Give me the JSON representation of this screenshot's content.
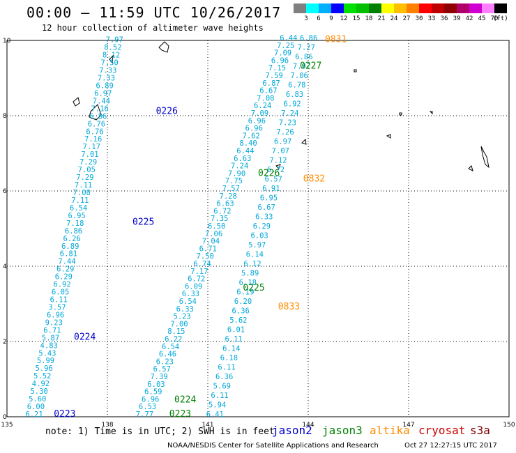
{
  "header": {
    "title": "00:00 – 11:59 UTC 10/26/2017",
    "subtitle": "12 hour collection of altimeter wave heights"
  },
  "colorbar": {
    "unit": "(ft)",
    "stops": [
      {
        "label": "3",
        "color": "#808080"
      },
      {
        "label": "6",
        "color": "#00ffff"
      },
      {
        "label": "9",
        "color": "#00b0ff"
      },
      {
        "label": "12",
        "color": "#0000ff"
      },
      {
        "label": "15",
        "color": "#00e000"
      },
      {
        "label": "18",
        "color": "#00c000"
      },
      {
        "label": "21",
        "color": "#008000"
      },
      {
        "label": "24",
        "color": "#ffff00"
      },
      {
        "label": "27",
        "color": "#ffc000"
      },
      {
        "label": "30",
        "color": "#ff8000"
      },
      {
        "label": "33",
        "color": "#ff0000"
      },
      {
        "label": "36",
        "color": "#c00000"
      },
      {
        "label": "39",
        "color": "#900000"
      },
      {
        "label": "42",
        "color": "#b0006a"
      },
      {
        "label": "45",
        "color": "#d000d0"
      },
      {
        "label": "70",
        "color": "#ff80ff"
      },
      {
        "label": "",
        "color": "#000000"
      }
    ]
  },
  "footer": {
    "note": "note: 1) Time is in UTC; 2) SWH is in feet",
    "credit": "NOAA/NESDIS Center for Satellite Applications and Research",
    "timestamp": "Oct 27 12:27:15 UTC 2017",
    "legend": [
      {
        "label": "jason2",
        "color": "#0000cc"
      },
      {
        "label": "jason3",
        "color": "#008000"
      },
      {
        "label": "altika",
        "color": "#ff8c00"
      },
      {
        "label": "cryosat",
        "color": "#cc0000"
      },
      {
        "label": "s3a",
        "color": "#800000"
      }
    ]
  },
  "chart_data": {
    "type": "scatter",
    "xlim": [
      135,
      150
    ],
    "ylim": [
      0,
      10
    ],
    "x_ticks": [
      "135",
      "138",
      "141",
      "144",
      "147",
      "150"
    ],
    "y_ticks": [
      "0",
      "2",
      "4",
      "6",
      "8",
      "10"
    ],
    "grid": true,
    "value_color": "#00a8d8",
    "tracks": [
      {
        "name": "jason2-west",
        "color": "#00a8d8",
        "start": [
          135.55,
          0.0
        ],
        "end": [
          137.95,
          9.95
        ],
        "values": [
          "6.21",
          "6.00",
          "5.60",
          "5.30",
          "4.92",
          "5.52",
          "5.96",
          "5.99",
          "5.43",
          "4.83",
          "5.87",
          "6.71",
          "9.23",
          "6.96",
          "3.57",
          "6.11",
          "6.05",
          "6.92",
          "6.29",
          "6.29",
          "7.44",
          "6.81",
          "6.89",
          "6.26",
          "6.86",
          "7.18",
          "6.95",
          "6.54",
          "7.11",
          "7.08",
          "7.11",
          "7.29",
          "7.05",
          "7.29",
          "7.01",
          "7.17",
          "7.16",
          "6.76",
          "6.76",
          "6.86",
          "7.16",
          "7.44",
          "6.97",
          "6.89",
          "7.33",
          "7.33",
          "7.50",
          "8.12",
          "8.52",
          "7.97"
        ]
      },
      {
        "name": "jason3-west",
        "color": "#00a8d8",
        "start": [
          138.85,
          0.0
        ],
        "end": [
          143.15,
          10.0
        ],
        "values": [
          "7.77",
          "6.53",
          "6.96",
          "6.59",
          "6.03",
          "7.39",
          "6.57",
          "6.23",
          "6.46",
          "6.54",
          "6.22",
          "8.15",
          "7.00",
          "5.23",
          "6.33",
          "6.54",
          "6.33",
          "6.09",
          "6.72",
          "7.17",
          "6.74",
          "7.50",
          "6.71",
          "7.04",
          "7.06",
          "6.50",
          "7.35",
          "6.72",
          "6.63",
          "7.28",
          "7.57",
          "7.75",
          "7.90",
          "7.24",
          "6.63",
          "6.44",
          "8.40",
          "7.62",
          "6.96",
          "6.96",
          "7.09",
          "6.24",
          "7.08",
          "6.67",
          "6.87",
          "7.59",
          "7.15",
          "6.96",
          "7.09",
          "7.25",
          "6.44"
        ]
      },
      {
        "name": "jason3-east",
        "color": "#00a8d8",
        "start": [
          140.95,
          0.0
        ],
        "end": [
          143.75,
          10.0
        ],
        "values": [
          "6.41",
          "5.94",
          "6.11",
          "5.69",
          "6.36",
          "6.11",
          "6.18",
          "6.14",
          "6.11",
          "6.01",
          "5.62",
          "6.36",
          "6.20",
          "6.19",
          "6.18",
          "5.89",
          "6.12",
          "6.14",
          "5.97",
          "6.03",
          "6.29",
          "6.33",
          "6.67",
          "6.95",
          "6.91",
          "6.57",
          "6.72",
          "7.12",
          "7.07",
          "6.97",
          "7.26",
          "7.23",
          "7.24",
          "6.92",
          "6.83",
          "6.78",
          "7.06",
          "7.0?",
          "6.86",
          "7.27",
          "6.86"
        ]
      }
    ],
    "pass_labels": [
      {
        "text": "0223",
        "satellite": "jason2",
        "x": 136.4,
        "y": 0.0,
        "color": "#0000cc"
      },
      {
        "text": "0224",
        "satellite": "jason2",
        "x": 137.0,
        "y": 2.05,
        "color": "#0000cc"
      },
      {
        "text": "0225",
        "satellite": "jason2",
        "x": 138.75,
        "y": 5.1,
        "color": "#0000cc"
      },
      {
        "text": "0226",
        "satellite": "jason2",
        "x": 139.45,
        "y": 8.05,
        "color": "#0000cc"
      },
      {
        "text": "0223",
        "satellite": "jason3",
        "x": 139.85,
        "y": 0.0,
        "color": "#008000"
      },
      {
        "text": "0224",
        "satellite": "jason3",
        "x": 140.0,
        "y": 0.38,
        "color": "#008000"
      },
      {
        "text": "0225",
        "satellite": "jason3",
        "x": 142.05,
        "y": 3.35,
        "color": "#008000"
      },
      {
        "text": "0226",
        "satellite": "jason3",
        "x": 142.5,
        "y": 6.4,
        "color": "#008000"
      },
      {
        "text": "0227",
        "satellite": "jason3",
        "x": 143.75,
        "y": 9.25,
        "color": "#008000"
      },
      {
        "text": "0831",
        "satellite": "altika",
        "x": 144.5,
        "y": 9.95,
        "color": "#ff8c00"
      },
      {
        "text": "0832",
        "satellite": "altika",
        "x": 143.85,
        "y": 6.25,
        "color": "#ff8c00"
      },
      {
        "text": "0833",
        "satellite": "altika",
        "x": 143.1,
        "y": 2.85,
        "color": "#ff8c00"
      }
    ]
  }
}
